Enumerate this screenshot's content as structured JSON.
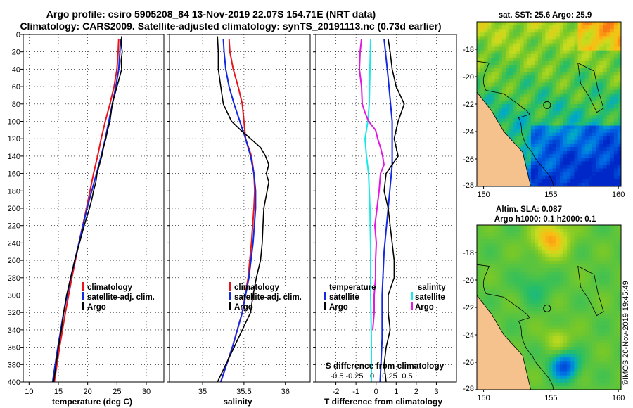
{
  "title_line1": "Argo profile: csiro 5905208_84 13-Nov-2019 22.07S 154.71E (NRT data)",
  "title_line2": "Climatology: CARS2009. Satellite-adjusted climatology: synTS_20191113.nc (0.73d earlier)",
  "side_stamp": "©IMOS 20-Nov-2019 19:45:49",
  "colors": {
    "climatology": "#e8141c",
    "satellite": "#1428e0",
    "argo": "#000000",
    "s_satellite": "#18e8e8",
    "s_argo": "#e018e0",
    "land": "#f5c28e"
  },
  "chart_data": [
    {
      "type": "line",
      "name": "temperature",
      "xlabel": "temperature (deg C)",
      "ylabel": "depth",
      "xlim": [
        9,
        33
      ],
      "ylim": [
        0,
        400
      ],
      "xticks": [
        "10",
        "15",
        "20",
        "25",
        "30"
      ],
      "yticks": [
        "0",
        "20",
        "40",
        "60",
        "80",
        "100",
        "120",
        "140",
        "160",
        "180",
        "200",
        "220",
        "240",
        "260",
        "280",
        "300",
        "320",
        "340",
        "360",
        "380",
        "400"
      ],
      "legend": [
        "climatology",
        "satellite-adj. clim.",
        "Argo"
      ],
      "series": [
        {
          "name": "climatology",
          "depth": [
            5,
            20,
            40,
            60,
            80,
            100,
            120,
            140,
            160,
            180,
            200,
            240,
            280,
            320,
            360,
            400
          ],
          "values": [
            25.3,
            25.2,
            25.0,
            24.5,
            23.8,
            23.0,
            22.3,
            21.7,
            21.0,
            20.4,
            19.8,
            18.5,
            17.3,
            16.2,
            15.2,
            14.3
          ]
        },
        {
          "name": "satellite-adj. clim.",
          "depth": [
            5,
            20,
            40,
            60,
            80,
            100,
            120,
            140,
            160,
            180,
            200,
            240,
            280,
            320,
            360,
            400
          ],
          "values": [
            25.6,
            25.5,
            25.3,
            24.8,
            24.2,
            23.6,
            23.0,
            22.3,
            21.5,
            20.7,
            19.9,
            18.5,
            17.1,
            15.9,
            14.9,
            14.0
          ]
        },
        {
          "name": "Argo",
          "depth": [
            2,
            10,
            20,
            30,
            40,
            50,
            60,
            70,
            80,
            90,
            100,
            110,
            120,
            130,
            140,
            150,
            160,
            170,
            180,
            190,
            200,
            220,
            240,
            260,
            280,
            300,
            320,
            340,
            360,
            380,
            400
          ],
          "values": [
            25.8,
            25.7,
            25.9,
            25.7,
            25.8,
            25.4,
            25.0,
            24.6,
            24.2,
            24.0,
            23.8,
            23.4,
            23.1,
            22.7,
            22.4,
            22.0,
            21.6,
            21.4,
            21.0,
            20.7,
            20.3,
            19.4,
            18.6,
            17.8,
            17.1,
            16.4,
            15.9,
            15.5,
            15.0,
            14.6,
            14.2
          ]
        }
      ]
    },
    {
      "type": "line",
      "name": "salinity",
      "xlabel": "salinity",
      "xlim": [
        34.6,
        36.3
      ],
      "ylim": [
        0,
        400
      ],
      "xticks": [
        "35",
        "35.5",
        "36"
      ],
      "legend": [
        "climatology",
        "satellite-adj. clim.",
        "Argo"
      ],
      "series": [
        {
          "name": "climatology",
          "depth": [
            5,
            20,
            40,
            60,
            80,
            100,
            120,
            140,
            160,
            180,
            200,
            240,
            280,
            320,
            360,
            400
          ],
          "values": [
            35.32,
            35.33,
            35.37,
            35.43,
            35.48,
            35.5,
            35.52,
            35.59,
            35.62,
            35.63,
            35.62,
            35.59,
            35.55,
            35.48,
            35.36,
            35.22
          ]
        },
        {
          "name": "satellite-adj. clim.",
          "depth": [
            5,
            20,
            40,
            60,
            80,
            100,
            120,
            140,
            160,
            180,
            200,
            240,
            280,
            320,
            360,
            400
          ],
          "values": [
            35.25,
            35.26,
            35.28,
            35.32,
            35.38,
            35.45,
            35.52,
            35.58,
            35.62,
            35.64,
            35.64,
            35.61,
            35.56,
            35.48,
            35.36,
            35.22
          ]
        },
        {
          "name": "Argo",
          "depth": [
            2,
            20,
            40,
            60,
            80,
            100,
            110,
            120,
            130,
            140,
            150,
            160,
            170,
            180,
            190,
            200,
            220,
            240,
            260,
            280,
            300,
            320,
            340,
            360,
            380,
            400
          ],
          "values": [
            35.18,
            35.19,
            35.19,
            35.22,
            35.25,
            35.35,
            35.46,
            35.58,
            35.7,
            35.76,
            35.8,
            35.77,
            35.8,
            35.78,
            35.76,
            35.74,
            35.73,
            35.72,
            35.7,
            35.65,
            35.61,
            35.58,
            35.48,
            35.38,
            35.28,
            35.18
          ]
        }
      ]
    },
    {
      "type": "line",
      "name": "difference",
      "xlabel": "T difference from climatology",
      "top_xlabel": "S difference from climatology",
      "xlim": [
        -3,
        4
      ],
      "ylim": [
        0,
        400
      ],
      "xticks": [
        "-2",
        "-1",
        "0",
        "1",
        "2",
        "3"
      ],
      "s_xticks": [
        "-0.5",
        "-0.25",
        "0",
        "0.25",
        "0.5"
      ],
      "legend_temperature": [
        "temperature",
        "satellite",
        "Argo"
      ],
      "legend_salinity": [
        "salinity",
        "satellite",
        "Argo"
      ],
      "series": [
        {
          "name": "temperature satellite",
          "depth": [
            5,
            50,
            100,
            150,
            200,
            250,
            300,
            350,
            400
          ],
          "values": [
            0.4,
            0.6,
            0.8,
            0.8,
            0.6,
            0.4,
            0.3,
            0.3,
            0.2
          ]
        },
        {
          "name": "temperature Argo",
          "depth": [
            5,
            20,
            40,
            60,
            80,
            100,
            120,
            140,
            160,
            180,
            200,
            220,
            240,
            260,
            280,
            300,
            320,
            340,
            360,
            380,
            400
          ],
          "values": [
            0.6,
            0.7,
            0.8,
            1.0,
            1.4,
            1.1,
            0.9,
            1.1,
            0.5,
            0.4,
            0.6,
            0.7,
            0.8,
            0.9,
            0.9,
            0.6,
            0.6,
            0.7,
            0.5,
            0.4,
            0.5
          ]
        },
        {
          "name": "salinity satellite",
          "depth": [
            5,
            40,
            80,
            100,
            110,
            120,
            140,
            160,
            200,
            250,
            300,
            350,
            400
          ],
          "values": [
            -0.02,
            -0.03,
            -0.04,
            -0.06,
            -0.08,
            -0.1,
            -0.08,
            -0.05,
            -0.03,
            -0.02,
            -0.02,
            -0.01,
            -0.01
          ]
        },
        {
          "name": "salinity Argo",
          "depth": [
            5,
            20,
            40,
            60,
            80,
            90,
            100,
            110,
            120,
            130,
            140,
            150,
            160,
            180,
            200,
            220,
            240,
            260,
            280,
            300,
            320,
            340
          ],
          "values": [
            -0.15,
            -0.17,
            -0.18,
            -0.15,
            -0.14,
            -0.1,
            -0.05,
            0.05,
            0.08,
            0.12,
            0.15,
            0.17,
            0.12,
            0.1,
            0.07,
            0.04,
            0.06,
            0.05,
            0.05,
            0.03,
            0.03,
            0.01
          ]
        }
      ]
    },
    {
      "type": "heatmap",
      "name": "sst-map",
      "title": "sat. SST: 25.6 Argo: 25.9",
      "xlim": [
        149.5,
        160.2
      ],
      "ylim": [
        -28,
        -16
      ],
      "xticks": [
        "150",
        "155",
        "160"
      ],
      "yticks": [
        "-18",
        "-20",
        "-22",
        "-24",
        "-26",
        "-28"
      ],
      "marker": {
        "lon": 154.71,
        "lat": -22.07
      }
    },
    {
      "type": "heatmap",
      "name": "sla-map",
      "title_line1": "Altim. SLA: 0.087",
      "title_line2": "Argo h1000: 0.1 h2000: 0.1",
      "xlim": [
        149.5,
        160.2
      ],
      "ylim": [
        -28,
        -16
      ],
      "xticks": [
        "150",
        "155",
        "160"
      ],
      "yticks": [
        "-18",
        "-20",
        "-22",
        "-24",
        "-26",
        "-28"
      ],
      "marker": {
        "lon": 154.71,
        "lat": -22.07
      }
    }
  ]
}
